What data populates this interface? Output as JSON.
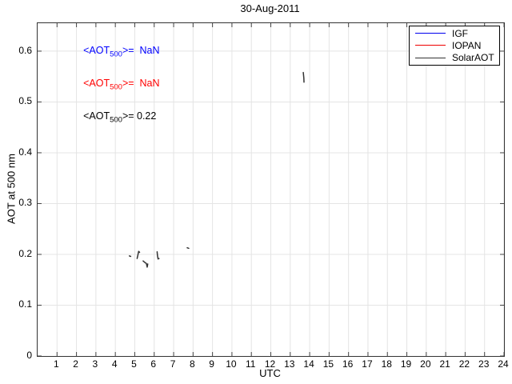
{
  "chart_data": {
    "type": "line",
    "title": "30-Aug-2011",
    "xlabel": "UTC",
    "ylabel": "AOT at 500 nm",
    "xlim": [
      0,
      24
    ],
    "ylim": [
      0,
      0.655
    ],
    "xticks": [
      1,
      2,
      3,
      4,
      5,
      6,
      7,
      8,
      9,
      10,
      11,
      12,
      13,
      14,
      15,
      16,
      17,
      18,
      19,
      20,
      21,
      22,
      23,
      24
    ],
    "yticks": [
      0,
      0.1,
      0.2,
      0.3,
      0.4,
      0.5,
      0.6
    ],
    "ytick_labels": [
      "0",
      "0.1",
      "0.2",
      "0.3",
      "0.4",
      "0.5",
      "0.6"
    ],
    "grid": true,
    "legend": {
      "position": "top-right",
      "entries": [
        "IGF",
        "IOPAN",
        "SolarAOT"
      ]
    },
    "series": [
      {
        "name": "IGF",
        "color": "#0000ee",
        "mean_aot500": "NaN",
        "segments": []
      },
      {
        "name": "IOPAN",
        "color": "#ee0000",
        "mean_aot500": "NaN",
        "segments": []
      },
      {
        "name": "SolarAOT",
        "color": "#333333",
        "mean_aot500": "0.22",
        "segments": [
          [
            [
              4.72,
              0.197
            ],
            [
              4.79,
              0.196
            ]
          ],
          [
            [
              5.12,
              0.192
            ],
            [
              5.16,
              0.198
            ],
            [
              5.2,
              0.206
            ],
            [
              5.25,
              0.204
            ]
          ],
          [
            [
              5.43,
              0.187
            ],
            [
              5.52,
              0.184
            ],
            [
              5.6,
              0.182
            ],
            [
              5.64,
              0.175
            ],
            [
              5.67,
              0.181
            ]
          ],
          [
            [
              6.15,
              0.205
            ],
            [
              6.17,
              0.197
            ],
            [
              6.2,
              0.191
            ],
            [
              6.25,
              0.192
            ]
          ],
          [
            [
              7.7,
              0.213
            ],
            [
              7.78,
              0.212
            ]
          ],
          [
            [
              13.67,
              0.558
            ],
            [
              13.7,
              0.547
            ],
            [
              13.71,
              0.539
            ]
          ]
        ]
      }
    ],
    "annotations": [
      {
        "pre": "<AOT",
        "sub": "500",
        "post": ">=  NaN",
        "color": "#0000ff",
        "x": 2.35,
        "y": 0.6
      },
      {
        "pre": "<AOT",
        "sub": "500",
        "post": ">=  NaN",
        "color": "#ff0000",
        "x": 2.35,
        "y": 0.535
      },
      {
        "pre": "<AOT",
        "sub": "500",
        "post": ">= 0.22",
        "color": "#000000",
        "x": 2.35,
        "y": 0.47
      }
    ]
  },
  "colors": {
    "grid": "#e4e4e4",
    "axis": "#333333",
    "tick": "#444444",
    "background": "#ffffff"
  }
}
